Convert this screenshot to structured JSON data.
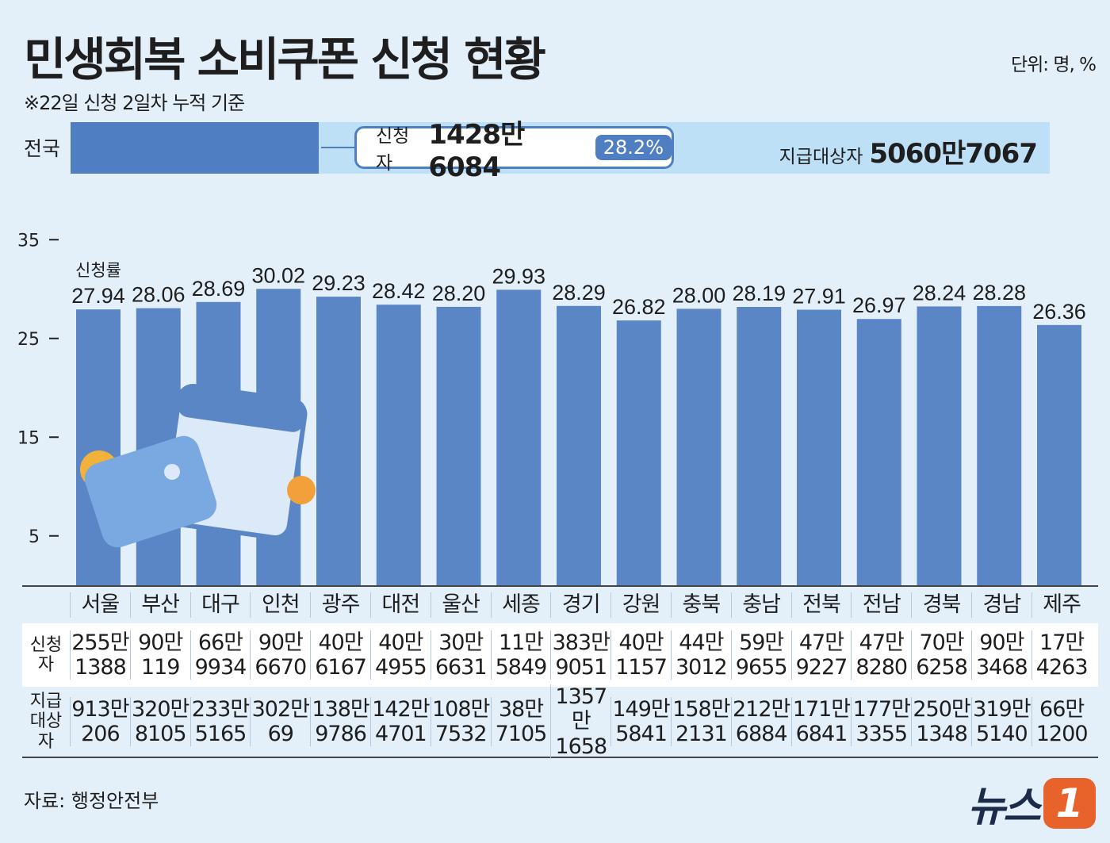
{
  "title": "민생회복 소비쿠폰 신청 현황",
  "subtitle": "※22일 신청 2일차 누적 기준",
  "unit": "단위: 명, %",
  "national": {
    "label": "전국",
    "applicants_label": "신청자",
    "applicants": "1428만6084",
    "rate": "28.2%",
    "rate_value": 28.2,
    "target_label": "지급대상자",
    "target": "5060만7067"
  },
  "chart_data": {
    "type": "bar",
    "series_label": "신청률",
    "categories": [
      "서울",
      "부산",
      "대구",
      "인천",
      "광주",
      "대전",
      "울산",
      "세종",
      "경기",
      "강원",
      "충북",
      "충남",
      "전북",
      "전남",
      "경북",
      "경남",
      "제주"
    ],
    "values": [
      27.94,
      28.06,
      28.69,
      30.02,
      29.23,
      28.42,
      28.2,
      29.93,
      28.29,
      26.82,
      28.0,
      28.19,
      27.91,
      26.97,
      28.24,
      28.28,
      26.36
    ],
    "value_labels": [
      "27.94",
      "28.06",
      "28.69",
      "30.02",
      "29.23",
      "28.42",
      "28.20",
      "29.93",
      "28.29",
      "26.82",
      "28.00",
      "28.19",
      "27.91",
      "26.97",
      "28.24",
      "28.28",
      "26.36"
    ],
    "yticks": [
      5,
      15,
      25,
      35
    ],
    "ylim": [
      0,
      35
    ],
    "bar_color": "#5a86c5",
    "grid": false
  },
  "table": {
    "applicants_header": "신청자",
    "target_header": [
      "지급",
      "대상자"
    ],
    "applicants": [
      [
        "255만",
        "1388"
      ],
      [
        "90만",
        "119"
      ],
      [
        "66만",
        "9934"
      ],
      [
        "90만",
        "6670"
      ],
      [
        "40만",
        "6167"
      ],
      [
        "40만",
        "4955"
      ],
      [
        "30만",
        "6631"
      ],
      [
        "11만",
        "5849"
      ],
      [
        "383만",
        "9051"
      ],
      [
        "40만",
        "1157"
      ],
      [
        "44만",
        "3012"
      ],
      [
        "59만",
        "9655"
      ],
      [
        "47만",
        "9227"
      ],
      [
        "47만",
        "8280"
      ],
      [
        "70만",
        "6258"
      ],
      [
        "90만",
        "3468"
      ],
      [
        "17만",
        "4263"
      ]
    ],
    "targets": [
      [
        "913만",
        "206"
      ],
      [
        "320만",
        "8105"
      ],
      [
        "233만",
        "5165"
      ],
      [
        "302만",
        "69"
      ],
      [
        "138만",
        "9786"
      ],
      [
        "142만",
        "4701"
      ],
      [
        "108만",
        "7532"
      ],
      [
        "38만",
        "7105"
      ],
      [
        "1357만",
        "1658"
      ],
      [
        "149만",
        "5841"
      ],
      [
        "158만",
        "2131"
      ],
      [
        "212만",
        "6884"
      ],
      [
        "171만",
        "6841"
      ],
      [
        "177만",
        "3355"
      ],
      [
        "250만",
        "1348"
      ],
      [
        "319만",
        "5140"
      ],
      [
        "66만",
        "1200"
      ]
    ]
  },
  "source": "자료: 행정안전부",
  "logo": {
    "text": "뉴스",
    "mark": "1"
  }
}
